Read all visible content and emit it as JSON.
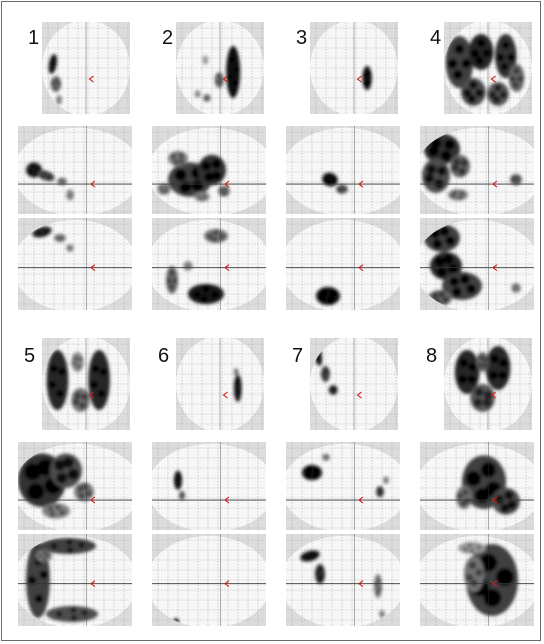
{
  "figure": {
    "panel_labels": [
      "1",
      "2",
      "3",
      "4",
      "5",
      "6",
      "7",
      "8"
    ],
    "colors": {
      "background": "#ffffff",
      "grid_panel": "#dcdcdc",
      "brain_outline": "#f7f7f7",
      "gridlines": "#a6a6a6",
      "crosshair": "#333333",
      "origin_marker": "#d21e1e",
      "activation": "#000000",
      "border": "#6b6b6b"
    },
    "projection_views": [
      "sagittal",
      "coronal",
      "axial"
    ]
  }
}
